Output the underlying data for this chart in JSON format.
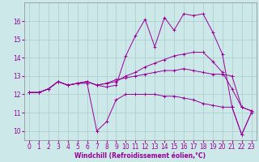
{
  "xlabel": "Windchill (Refroidissement éolien,°C)",
  "bg_color": "#cce8e8",
  "grid_color": "#aacccc",
  "line_color": "#990099",
  "spine_color": "#888888",
  "x_ticks": [
    0,
    1,
    2,
    3,
    4,
    5,
    6,
    7,
    8,
    9,
    10,
    11,
    12,
    13,
    14,
    15,
    16,
    17,
    18,
    19,
    20,
    21,
    22,
    23
  ],
  "ylim": [
    9.5,
    17.0
  ],
  "yticks": [
    10,
    11,
    12,
    13,
    14,
    15,
    16
  ],
  "series": [
    [
      12.1,
      12.1,
      12.3,
      12.7,
      12.5,
      12.6,
      12.6,
      10.0,
      10.5,
      11.7,
      12.0,
      12.0,
      12.0,
      12.0,
      11.9,
      11.9,
      11.8,
      11.7,
      11.5,
      11.4,
      11.3,
      11.3,
      9.8,
      11.0
    ],
    [
      12.1,
      12.1,
      12.3,
      12.7,
      12.5,
      12.6,
      12.7,
      12.5,
      12.4,
      12.5,
      14.1,
      15.2,
      16.1,
      14.6,
      16.2,
      15.5,
      16.4,
      16.3,
      16.4,
      15.4,
      14.2,
      11.3,
      9.8,
      11.0
    ],
    [
      12.1,
      12.1,
      12.3,
      12.7,
      12.5,
      12.6,
      12.7,
      12.5,
      12.6,
      12.7,
      13.0,
      13.2,
      13.5,
      13.7,
      13.9,
      14.1,
      14.2,
      14.3,
      14.3,
      13.8,
      13.2,
      12.3,
      11.3,
      11.1
    ],
    [
      12.1,
      12.1,
      12.3,
      12.7,
      12.5,
      12.6,
      12.7,
      12.5,
      12.6,
      12.8,
      12.9,
      13.0,
      13.1,
      13.2,
      13.3,
      13.3,
      13.4,
      13.3,
      13.2,
      13.1,
      13.1,
      13.0,
      11.3,
      11.1
    ]
  ],
  "tick_fontsize": 5.5,
  "xlabel_fontsize": 5.5,
  "linewidth": 0.7,
  "markersize": 2.5
}
